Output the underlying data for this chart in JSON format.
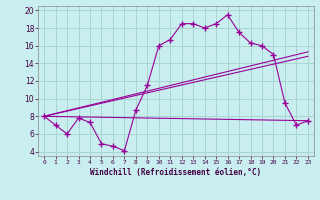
{
  "background_color": "#c8eef0",
  "grid_color": "#aad4d0",
  "line_color": "#990099",
  "xlabel": "Windchill (Refroidissement éolien,°C)",
  "xlim": [
    -0.5,
    23.5
  ],
  "ylim": [
    3.5,
    20.5
  ],
  "yticks": [
    4,
    6,
    8,
    10,
    12,
    14,
    16,
    18,
    20
  ],
  "xticks": [
    0,
    1,
    2,
    3,
    4,
    5,
    6,
    7,
    8,
    9,
    10,
    11,
    12,
    13,
    14,
    15,
    16,
    17,
    18,
    19,
    20,
    21,
    22,
    23
  ],
  "series1_x": [
    0,
    1,
    2,
    3,
    4,
    5,
    6,
    7,
    8,
    9,
    10,
    11,
    12,
    13,
    14,
    15,
    16,
    17,
    18,
    19,
    20,
    21,
    22,
    23
  ],
  "series1_y": [
    8.0,
    7.0,
    6.0,
    7.8,
    7.3,
    4.9,
    4.6,
    4.1,
    8.7,
    11.5,
    16.0,
    16.7,
    18.5,
    18.5,
    18.0,
    18.5,
    19.5,
    17.5,
    16.3,
    16.0,
    15.0,
    9.5,
    7.0,
    7.5
  ],
  "trend1_x": [
    0,
    23
  ],
  "trend1_y": [
    8.0,
    7.5
  ],
  "trend2_x": [
    0,
    23
  ],
  "trend2_y": [
    8.0,
    14.8
  ],
  "trend3_x": [
    0,
    23
  ],
  "trend3_y": [
    8.0,
    15.3
  ]
}
